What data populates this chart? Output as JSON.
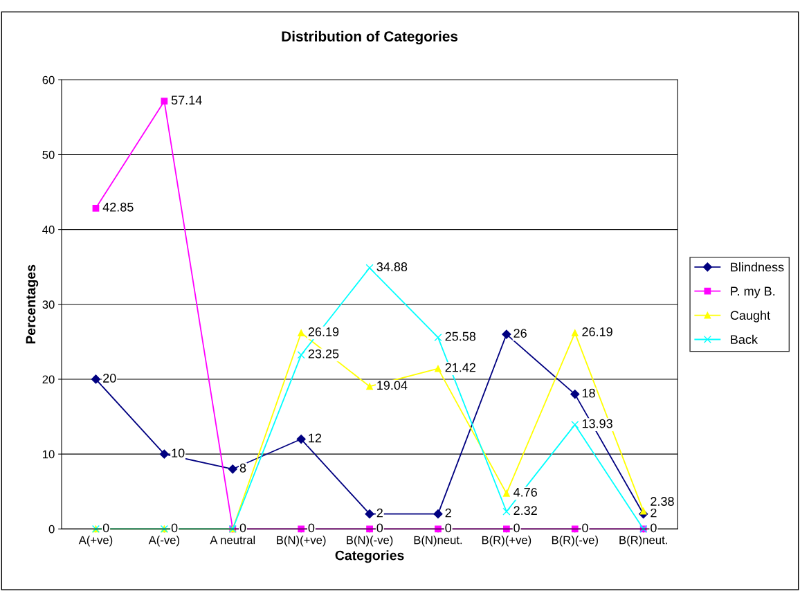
{
  "chart_data": {
    "type": "line",
    "title": "Distribution of Categories",
    "xlabel": "Categories",
    "ylabel": "Percentages",
    "categories": [
      "A(+ve)",
      "A(-ve)",
      "A neutral",
      "B(N)(+ve)",
      "B(N)(-ve)",
      "B(N)neut.",
      "B(R)(+ve)",
      "B(R)(-ve)",
      "B(R)neut."
    ],
    "series": [
      {
        "name": "Blindness",
        "color": "#000080",
        "marker": "diamond",
        "values": [
          20,
          10,
          8,
          12,
          2,
          2,
          26,
          18,
          2
        ],
        "value_labels": [
          "20",
          "10",
          "8",
          "12",
          "2",
          "2",
          "26",
          "18",
          "2"
        ]
      },
      {
        "name": "P. my B.",
        "color": "#ff00ff",
        "marker": "square",
        "values": [
          42.85,
          57.14,
          0,
          0,
          0,
          0,
          0,
          0,
          0
        ],
        "value_labels": [
          "42.85",
          "57.14",
          null,
          "0",
          "0",
          "0",
          "0",
          "0",
          null
        ]
      },
      {
        "name": "Caught",
        "color": "#ffff00",
        "marker": "triangle",
        "values": [
          0,
          0,
          0,
          26.19,
          19.04,
          21.42,
          4.76,
          26.19,
          2.38
        ],
        "value_labels": [
          null,
          null,
          null,
          "26.19",
          "19.04",
          "21.42",
          "4.76",
          "26.19",
          "2.38"
        ]
      },
      {
        "name": "Back",
        "color": "#00ffff",
        "marker": "cross",
        "values": [
          0,
          0,
          0,
          23.25,
          34.88,
          25.58,
          2.32,
          13.93,
          0
        ],
        "value_labels": [
          "0",
          "0",
          "0",
          "23.25",
          "34.88",
          "25.58",
          "2.32",
          "13.93",
          "0"
        ]
      }
    ],
    "ylim": [
      0,
      60
    ],
    "yticks": [
      0,
      10,
      20,
      30,
      40,
      50,
      60
    ],
    "grid": "y",
    "legend": "right"
  }
}
